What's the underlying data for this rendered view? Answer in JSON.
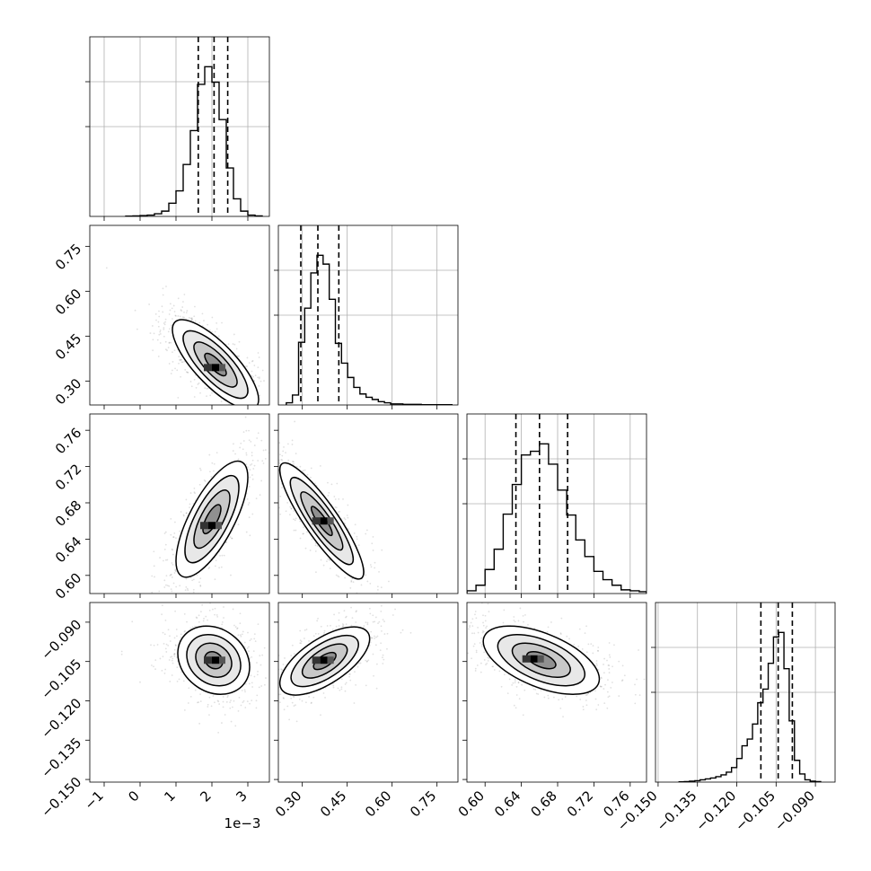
{
  "chart_data": {
    "type": "corner",
    "n_params": 4,
    "parameters": [
      {
        "ticks": [
          -1,
          0,
          1,
          2,
          3
        ],
        "tick_labels": [
          "−1",
          "0",
          "1",
          "2",
          "3"
        ],
        "range": [
          -1.4,
          3.6
        ],
        "offset_label": "1e−3",
        "quantiles": [
          1.62,
          2.06,
          2.44
        ]
      },
      {
        "ticks": [
          0.3,
          0.45,
          0.6,
          0.75
        ],
        "tick_labels": [
          "0.30",
          "0.45",
          "0.60",
          "0.75"
        ],
        "range": [
          0.22,
          0.82
        ],
        "quantiles": [
          0.295,
          0.352,
          0.422
        ]
      },
      {
        "ticks": [
          0.6,
          0.64,
          0.68,
          0.72,
          0.76
        ],
        "tick_labels": [
          "0.60",
          "0.64",
          "0.68",
          "0.72",
          "0.76"
        ],
        "range": [
          0.58,
          0.778
        ],
        "quantiles": [
          0.634,
          0.66,
          0.691
        ]
      },
      {
        "ticks": [
          -0.15,
          -0.135,
          -0.12,
          -0.105,
          -0.09
        ],
        "tick_labels": [
          "−0.150",
          "−0.135",
          "−0.120",
          "−0.105",
          "−0.090"
        ],
        "range": [
          -0.151,
          -0.0825
        ],
        "quantiles": [
          -0.1108,
          -0.1042,
          -0.0988
        ]
      }
    ],
    "histograms": [
      {
        "bin_edges": [
          -0.4,
          -0.2,
          0.0,
          0.2,
          0.4,
          0.6,
          0.8,
          1.0,
          1.2,
          1.4,
          1.6,
          1.8,
          2.0,
          2.2,
          2.4,
          2.6,
          2.8,
          3.0,
          3.2,
          3.4
        ],
        "counts": [
          0.5,
          1,
          2,
          3,
          6,
          12,
          30,
          58,
          118,
          195,
          300,
          340,
          305,
          220,
          110,
          40,
          12,
          3,
          1
        ]
      },
      {
        "bin_edges": [
          0.2465,
          0.267,
          0.2875,
          0.308,
          0.3285,
          0.349,
          0.3695,
          0.39,
          0.4105,
          0.431,
          0.4515,
          0.472,
          0.4925,
          0.513,
          0.5335,
          0.554,
          0.5745,
          0.595,
          0.6155,
          0.636,
          0.6565,
          0.677,
          0.6975,
          0.718,
          0.7385,
          0.759,
          0.7795,
          0.8
        ],
        "counts": [
          2,
          9,
          57,
          88,
          120,
          136,
          128,
          96,
          56,
          38,
          25,
          16,
          10,
          7,
          5,
          3,
          2,
          1,
          1,
          0.5,
          0.5,
          0.5,
          0.2,
          0.2,
          0.2,
          0.2,
          0.2
        ]
      },
      {
        "bin_edges": [
          0.58,
          0.59,
          0.6,
          0.61,
          0.62,
          0.63,
          0.64,
          0.65,
          0.66,
          0.67,
          0.68,
          0.69,
          0.7,
          0.71,
          0.72,
          0.73,
          0.74,
          0.75,
          0.76,
          0.77,
          0.778
        ],
        "counts": [
          3,
          9,
          26,
          48,
          86,
          118,
          150,
          154,
          162,
          140,
          112,
          85,
          58,
          40,
          24,
          15,
          9,
          4,
          3,
          2
        ]
      },
      {
        "bin_edges": [
          -0.142,
          -0.14,
          -0.138,
          -0.136,
          -0.134,
          -0.132,
          -0.13,
          -0.128,
          -0.126,
          -0.124,
          -0.122,
          -0.12,
          -0.118,
          -0.116,
          -0.114,
          -0.112,
          -0.11,
          -0.108,
          -0.106,
          -0.104,
          -0.102,
          -0.1,
          -0.098,
          -0.096,
          -0.094,
          -0.092,
          -0.09,
          -0.088
        ],
        "counts": [
          0.5,
          1,
          2,
          3,
          5,
          7,
          9,
          12,
          16,
          22,
          32,
          52,
          80,
          95,
          128,
          175,
          205,
          262,
          320,
          330,
          250,
          135,
          48,
          18,
          5,
          2,
          1
        ]
      }
    ],
    "pairs": [
      {
        "x": 0,
        "y": 1,
        "center": [
          2.1,
          0.355
        ],
        "spread": [
          0.6,
          0.075
        ],
        "corr": -0.78,
        "peak": [
          2.0,
          0.345
        ]
      },
      {
        "x": 0,
        "y": 2,
        "center": [
          2.0,
          0.662
        ],
        "spread": [
          0.5,
          0.032
        ],
        "corr": 0.72,
        "peak": [
          1.9,
          0.655
        ]
      },
      {
        "x": 1,
        "y": 2,
        "center": [
          0.365,
          0.66
        ],
        "spread": [
          0.07,
          0.032
        ],
        "corr": -0.88,
        "peak": [
          0.36,
          0.66
        ]
      },
      {
        "x": 0,
        "y": 3,
        "center": [
          2.05,
          -0.1045
        ],
        "spread": [
          0.5,
          0.0065
        ],
        "corr": -0.2,
        "peak": [
          2.0,
          -0.1045
        ]
      },
      {
        "x": 1,
        "y": 3,
        "center": [
          0.375,
          -0.1048
        ],
        "spread": [
          0.075,
          0.0065
        ],
        "corr": 0.65,
        "peak": [
          0.36,
          -0.1045
        ]
      },
      {
        "x": 2,
        "y": 3,
        "center": [
          0.662,
          -0.1045
        ],
        "spread": [
          0.032,
          0.0065
        ],
        "corr": -0.55,
        "peak": [
          0.65,
          -0.104
        ]
      }
    ]
  }
}
